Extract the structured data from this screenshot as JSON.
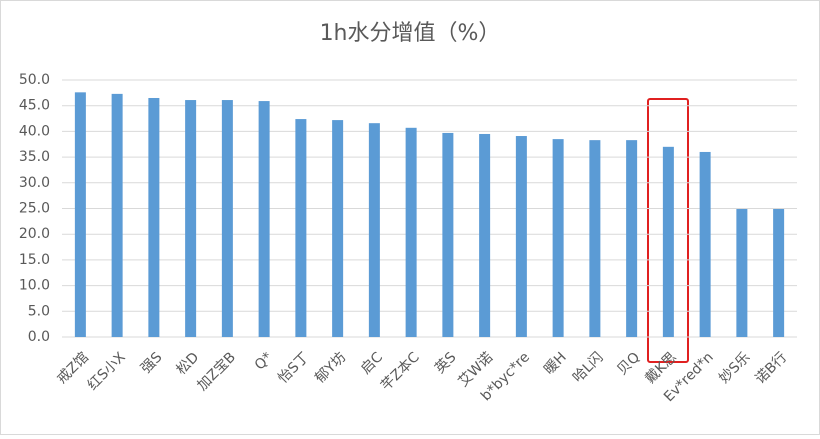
{
  "chart_data": {
    "type": "bar",
    "title": "1h水分增值（%）",
    "categories": [
      "戒Z馆",
      "红S小X",
      "强S",
      "松D",
      "加Z宝B",
      "Q*",
      "怡S丁",
      "郁Y坊",
      "启C",
      "芊Z本C",
      "英S",
      "艾W诺",
      "b*byc*re",
      "暖H",
      "哈L闪",
      "贝Q",
      "戴K思",
      "Ev*red*n",
      "妙S乐",
      "诺B行"
    ],
    "values": [
      47.6,
      47.3,
      46.5,
      46.1,
      46.1,
      45.9,
      42.4,
      42.2,
      41.6,
      40.7,
      39.7,
      39.5,
      39.1,
      38.5,
      38.3,
      38.3,
      37.0,
      36.0,
      24.9,
      24.9
    ],
    "color": "#5b9bd5",
    "ylim": [
      0,
      50
    ],
    "yticks": [
      {
        "value": 0,
        "label": "0.0"
      },
      {
        "value": 5,
        "label": "5.0"
      },
      {
        "value": 10,
        "label": "10.0"
      },
      {
        "value": 15,
        "label": "15.0"
      },
      {
        "value": 20,
        "label": "20.0"
      },
      {
        "value": 25,
        "label": "25.0"
      },
      {
        "value": 30,
        "label": "30.0"
      },
      {
        "value": 35,
        "label": "35.0"
      },
      {
        "value": 40,
        "label": "40.0"
      },
      {
        "value": 45,
        "label": "45.0"
      },
      {
        "value": 50,
        "label": "50.0"
      }
    ],
    "grid": true
  }
}
